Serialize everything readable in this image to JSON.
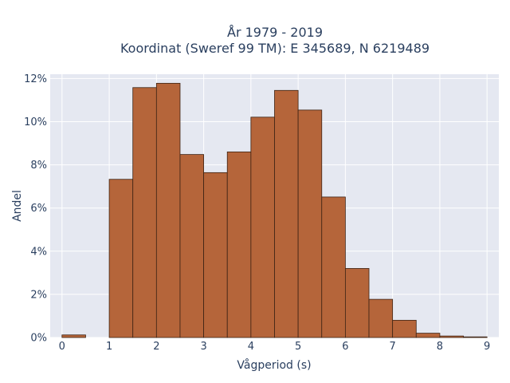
{
  "chart_data": {
    "type": "bar",
    "title_lines": [
      "År 1979 - 2019",
      "Koordinat (Sweref 99 TM): E 345689, N 6219489"
    ],
    "xlabel": "Vågperiod (s)",
    "ylabel": "Andel",
    "xlim": [
      -0.25,
      9.25
    ],
    "ylim": [
      0,
      0.122
    ],
    "x_ticks": [
      0,
      1,
      2,
      3,
      4,
      5,
      6,
      7,
      8,
      9
    ],
    "y_ticks": [
      {
        "value": 0,
        "label": "0%"
      },
      {
        "value": 0.02,
        "label": "2%"
      },
      {
        "value": 0.04,
        "label": "4%"
      },
      {
        "value": 0.06,
        "label": "6%"
      },
      {
        "value": 0.08,
        "label": "8%"
      },
      {
        "value": 0.1,
        "label": "10%"
      },
      {
        "value": 0.12,
        "label": "12%"
      }
    ],
    "bin_width": 0.5,
    "bins": [
      {
        "x0": 0.0,
        "value": 0.0012
      },
      {
        "x0": 0.5,
        "value": 0.0
      },
      {
        "x0": 1.0,
        "value": 0.0733
      },
      {
        "x0": 1.5,
        "value": 0.1158
      },
      {
        "x0": 2.0,
        "value": 0.1178
      },
      {
        "x0": 2.5,
        "value": 0.0848
      },
      {
        "x0": 3.0,
        "value": 0.0764
      },
      {
        "x0": 3.5,
        "value": 0.086
      },
      {
        "x0": 4.0,
        "value": 0.1021
      },
      {
        "x0": 4.5,
        "value": 0.1145
      },
      {
        "x0": 5.0,
        "value": 0.1054
      },
      {
        "x0": 5.5,
        "value": 0.0651
      },
      {
        "x0": 6.0,
        "value": 0.032
      },
      {
        "x0": 6.5,
        "value": 0.0177
      },
      {
        "x0": 7.0,
        "value": 0.008
      },
      {
        "x0": 7.5,
        "value": 0.002
      },
      {
        "x0": 8.0,
        "value": 0.0007
      },
      {
        "x0": 8.5,
        "value": 0.0003
      }
    ],
    "grid": true,
    "colors": {
      "bar_fill": "#b5653a",
      "bar_stroke": "#3d2314",
      "plot_bg": "#e5e8f1",
      "grid": "#ffffff",
      "text": "#2a3f5f"
    }
  }
}
